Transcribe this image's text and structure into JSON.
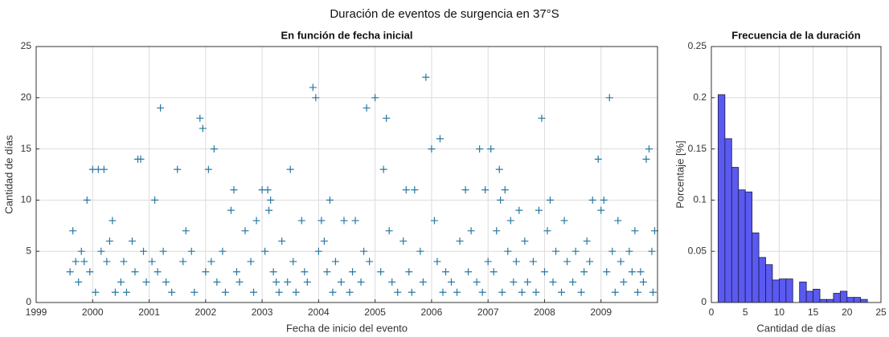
{
  "title": "Duración de eventos de surgencia en 37°S",
  "chart_data": [
    {
      "type": "scatter",
      "title": "En función de fecha inicial",
      "x_label": "Fecha de inicio del evento",
      "y_label": "Cantidad de días",
      "color": "#2878a0",
      "marker": "+",
      "grid": true,
      "xlim": [
        1999,
        2010
      ],
      "xticks": [
        1999,
        2000,
        2001,
        2002,
        2003,
        2004,
        2005,
        2006,
        2007,
        2008,
        2009
      ],
      "ylim": [
        0,
        25
      ],
      "yticks": [
        0,
        5,
        10,
        15,
        20,
        25
      ],
      "x": [
        1999.65,
        1999.9,
        2000.0,
        2000.1,
        2000.2,
        2000.3,
        2000.35,
        2000.8,
        2000.85,
        2001.1,
        2001.2,
        2001.5,
        2001.9,
        2001.95,
        2002.05,
        2002.15,
        2002.45,
        2002.5,
        2002.9,
        2003.0,
        2003.1,
        2003.15,
        2003.12,
        2003.5,
        2003.7,
        2003.9,
        2003.95,
        2004.05,
        2004.2,
        2004.45,
        2004.65,
        2004.85,
        2005.0,
        2005.15,
        2005.2,
        2005.55,
        2005.7,
        2005.9,
        2006.0,
        2006.05,
        2006.15,
        2006.6,
        2006.85,
        2006.95,
        2007.05,
        2007.2,
        2007.3,
        2007.22,
        2007.4,
        2007.55,
        2007.9,
        2007.95,
        2008.1,
        2008.35,
        2008.85,
        2008.95,
        2009.0,
        2009.05,
        2009.15,
        2009.3,
        2009.6,
        2009.8,
        2009.85,
        2009.95,
        1999.6,
        1999.7,
        1999.75,
        1999.8,
        1999.85,
        1999.95,
        2000.05,
        2000.15,
        2000.25,
        2000.4,
        2000.5,
        2000.55,
        2000.6,
        2000.7,
        2000.75,
        2000.9,
        2000.95,
        2001.05,
        2001.15,
        2001.25,
        2001.3,
        2001.4,
        2001.6,
        2001.65,
        2001.75,
        2001.8,
        2002.0,
        2002.1,
        2002.2,
        2002.3,
        2002.35,
        2002.55,
        2002.6,
        2002.7,
        2002.8,
        2002.85,
        2003.05,
        2003.2,
        2003.25,
        2003.3,
        2003.35,
        2003.45,
        2003.55,
        2003.6,
        2003.75,
        2003.8,
        2004.0,
        2004.1,
        2004.15,
        2004.25,
        2004.3,
        2004.4,
        2004.55,
        2004.6,
        2004.75,
        2004.8,
        2004.9,
        2005.1,
        2005.25,
        2005.3,
        2005.4,
        2005.5,
        2005.6,
        2005.65,
        2005.8,
        2005.85,
        2006.1,
        2006.2,
        2006.25,
        2006.35,
        2006.45,
        2006.5,
        2006.65,
        2006.7,
        2006.8,
        2006.9,
        2007.0,
        2007.1,
        2007.15,
        2007.25,
        2007.35,
        2007.45,
        2007.5,
        2007.6,
        2007.65,
        2007.7,
        2007.8,
        2007.85,
        2008.0,
        2008.05,
        2008.15,
        2008.2,
        2008.3,
        2008.4,
        2008.5,
        2008.55,
        2008.65,
        2008.7,
        2008.75,
        2008.8,
        2009.1,
        2009.2,
        2009.25,
        2009.35,
        2009.4,
        2009.5,
        2009.55,
        2009.65,
        2009.7,
        2009.75,
        2009.9,
        2009.92
      ],
      "y": [
        7,
        10,
        13,
        13,
        13,
        6,
        8,
        14,
        14,
        10,
        19,
        13,
        18,
        17,
        13,
        15,
        9,
        11,
        8,
        11,
        11,
        10,
        9,
        13,
        8,
        21,
        20,
        8,
        10,
        8,
        8,
        19,
        20,
        13,
        18,
        11,
        11,
        22,
        15,
        8,
        16,
        11,
        15,
        11,
        15,
        13,
        11,
        10,
        8,
        9,
        9,
        18,
        10,
        8,
        10,
        14,
        9,
        10,
        20,
        8,
        7,
        14,
        15,
        7,
        3,
        4,
        2,
        5,
        4,
        3,
        1,
        5,
        4,
        1,
        2,
        4,
        1,
        6,
        3,
        5,
        2,
        4,
        3,
        5,
        2,
        1,
        4,
        7,
        5,
        1,
        3,
        4,
        2,
        5,
        1,
        3,
        2,
        7,
        4,
        1,
        5,
        3,
        2,
        1,
        6,
        2,
        4,
        1,
        3,
        2,
        5,
        6,
        3,
        1,
        4,
        2,
        1,
        3,
        2,
        5,
        4,
        3,
        7,
        2,
        1,
        6,
        3,
        1,
        5,
        2,
        4,
        1,
        3,
        2,
        1,
        6,
        3,
        7,
        2,
        1,
        4,
        3,
        7,
        1,
        5,
        2,
        4,
        1,
        6,
        2,
        4,
        1,
        3,
        7,
        2,
        5,
        1,
        4,
        2,
        5,
        1,
        3,
        6,
        4,
        3,
        5,
        1,
        4,
        2,
        5,
        3,
        1,
        3,
        2,
        5,
        1
      ]
    },
    {
      "type": "histogram",
      "title": "Frecuencia de la duración",
      "x_label": "Cantidad de días",
      "y_label": "Porcentaje [%]",
      "color": "#5a5af0",
      "edgecolor": "#1a1a4a",
      "grid": true,
      "xlim": [
        0,
        25
      ],
      "xticks": [
        0,
        5,
        10,
        15,
        20,
        25
      ],
      "ylim": [
        0,
        0.25
      ],
      "yticks": [
        0,
        0.05,
        0.1,
        0.15,
        0.2,
        0.25
      ],
      "bins": [
        1,
        2,
        3,
        4,
        5,
        6,
        7,
        8,
        9,
        10,
        11,
        12,
        13,
        14,
        15,
        16,
        17,
        18,
        19,
        20,
        21,
        22,
        23
      ],
      "values": [
        0.203,
        0.16,
        0.132,
        0.11,
        0.108,
        0.068,
        0.044,
        0.037,
        0.022,
        0.023,
        0.023,
        0,
        0.02,
        0.011,
        0.013,
        0.003,
        0.003,
        0.009,
        0.011,
        0.005,
        0.005,
        0.003
      ]
    }
  ]
}
